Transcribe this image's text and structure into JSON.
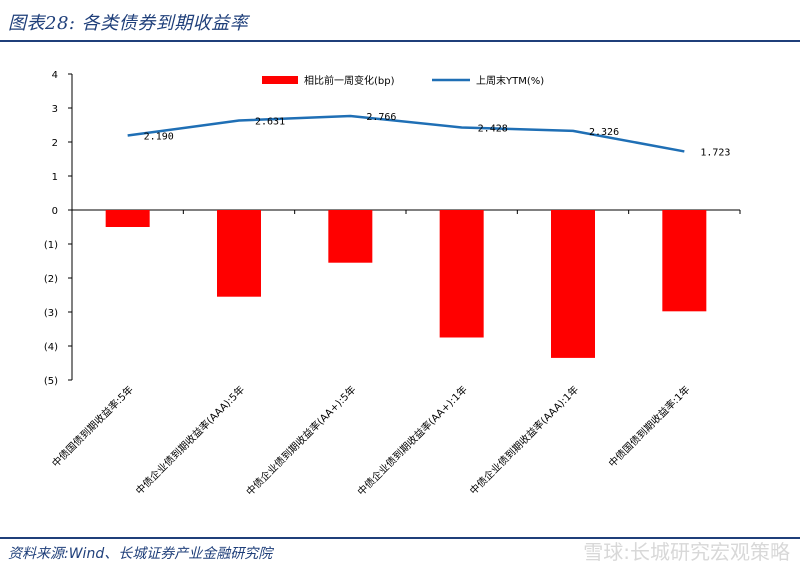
{
  "header": {
    "title": "图表28:  各类债券到期收益率"
  },
  "footer": {
    "source": "资料来源:Wind、长城证券产业金融研究院",
    "watermark": "雪球:长城研究宏观策略"
  },
  "colors": {
    "bar": "#ff0000",
    "line": "#1f6fb5",
    "brand": "#1f3f7a"
  },
  "chart_data": {
    "type": "bar",
    "categories": [
      "中债国债到期收益率:5年",
      "中债企业债到期收益率(AAA):5年",
      "中债企业债到期收益率(AA+):5年",
      "中债企业债到期收益率(AA+):1年",
      "中债企业债到期收益率(AAA):1年",
      "中债国债到期收益率:1年"
    ],
    "series": [
      {
        "name": "相比前一周变化(bp)",
        "type": "bar",
        "values": [
          -0.5,
          -2.55,
          -1.55,
          -3.75,
          -4.35,
          -2.98
        ]
      },
      {
        "name": "上周末YTM(%)",
        "type": "line",
        "values": [
          2.19,
          2.631,
          2.766,
          2.428,
          2.326,
          1.723
        ]
      }
    ],
    "data_labels": [
      "2.190",
      "2.631",
      "2.766",
      "2.428",
      "2.326",
      "1.723"
    ],
    "yticks": [
      "4",
      "3",
      "2",
      "1",
      "0",
      "(1)",
      "(2)",
      "(3)",
      "(4)",
      "(5)"
    ],
    "ylim": [
      -5,
      4
    ],
    "legend_position": "top-center",
    "grid": false
  }
}
